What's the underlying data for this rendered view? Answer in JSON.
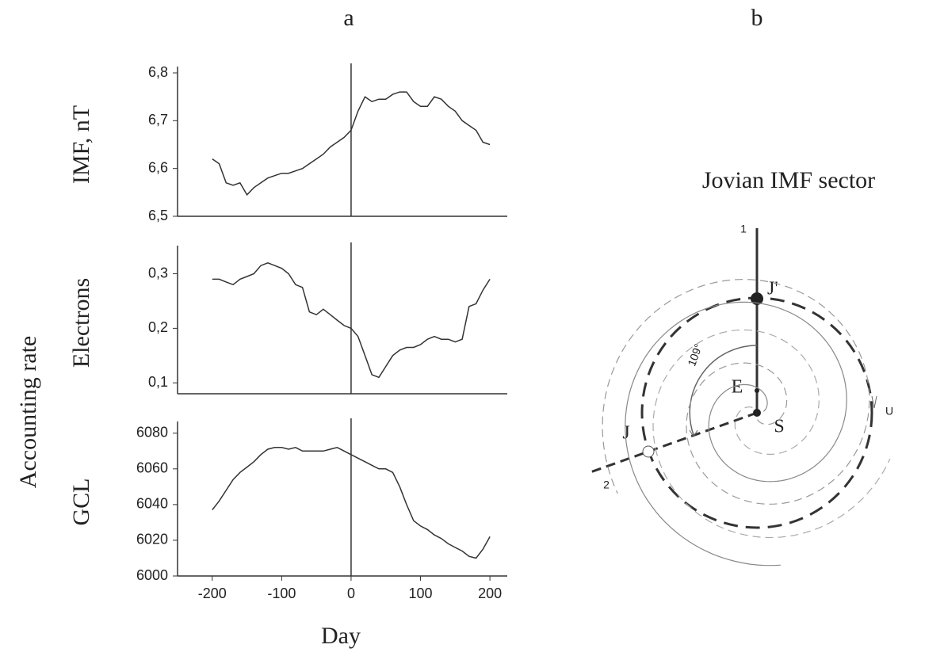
{
  "panel_labels": [
    "a",
    "b"
  ],
  "shared_y_label": "Accounting rate",
  "chart_data": [
    {
      "type": "line",
      "y_label": "IMF, nT",
      "color": "#333333",
      "reference_x": 0,
      "x": [
        -200,
        -190,
        -180,
        -170,
        -160,
        -150,
        -140,
        -130,
        -120,
        -110,
        -100,
        -90,
        -80,
        -70,
        -60,
        -50,
        -40,
        -30,
        -20,
        -10,
        0,
        10,
        20,
        30,
        40,
        50,
        60,
        70,
        80,
        90,
        100,
        110,
        120,
        130,
        140,
        150,
        160,
        170,
        180,
        190,
        200
      ],
      "values": [
        6.62,
        6.61,
        6.57,
        6.565,
        6.57,
        6.545,
        6.56,
        6.57,
        6.58,
        6.585,
        6.59,
        6.59,
        6.595,
        6.6,
        6.61,
        6.62,
        6.63,
        6.645,
        6.655,
        6.665,
        6.68,
        6.72,
        6.75,
        6.74,
        6.745,
        6.745,
        6.755,
        6.76,
        6.76,
        6.74,
        6.73,
        6.73,
        6.75,
        6.745,
        6.73,
        6.72,
        6.7,
        6.69,
        6.68,
        6.655,
        6.65
      ],
      "xlim": [
        -250,
        225
      ],
      "ylim": [
        6.5,
        6.8
      ],
      "yticks": [
        {
          "value": 6.5,
          "label": "6,5"
        },
        {
          "value": 6.6,
          "label": "6,6"
        },
        {
          "value": 6.7,
          "label": "6,7"
        },
        {
          "value": 6.8,
          "label": "6,8"
        }
      ]
    },
    {
      "type": "line",
      "y_label": "Electrons",
      "color": "#333333",
      "reference_x": 0,
      "x": [
        -200,
        -190,
        -180,
        -170,
        -160,
        -150,
        -140,
        -130,
        -120,
        -110,
        -100,
        -90,
        -80,
        -70,
        -60,
        -50,
        -40,
        -30,
        -20,
        -10,
        0,
        10,
        20,
        30,
        40,
        50,
        60,
        70,
        80,
        90,
        100,
        110,
        120,
        130,
        140,
        150,
        160,
        170,
        180,
        190,
        200
      ],
      "values": [
        0.29,
        0.29,
        0.285,
        0.28,
        0.29,
        0.295,
        0.3,
        0.315,
        0.32,
        0.315,
        0.31,
        0.3,
        0.28,
        0.275,
        0.23,
        0.225,
        0.235,
        0.225,
        0.215,
        0.205,
        0.2,
        0.185,
        0.15,
        0.115,
        0.11,
        0.13,
        0.15,
        0.16,
        0.165,
        0.165,
        0.17,
        0.18,
        0.185,
        0.18,
        0.18,
        0.175,
        0.18,
        0.24,
        0.245,
        0.27,
        0.29
      ],
      "xlim": [
        -250,
        225
      ],
      "ylim": [
        0.08,
        0.34
      ],
      "yticks": [
        {
          "value": 0.1,
          "label": "0,1"
        },
        {
          "value": 0.2,
          "label": "0,2"
        },
        {
          "value": 0.3,
          "label": "0,3"
        }
      ]
    },
    {
      "type": "line",
      "y_label": "GCL",
      "x_label": "Day",
      "color": "#333333",
      "reference_x": 0,
      "x": [
        -200,
        -190,
        -180,
        -170,
        -160,
        -150,
        -140,
        -130,
        -120,
        -110,
        -100,
        -90,
        -80,
        -70,
        -60,
        -50,
        -40,
        -30,
        -20,
        -10,
        0,
        10,
        20,
        30,
        40,
        50,
        60,
        70,
        80,
        90,
        100,
        110,
        120,
        130,
        140,
        150,
        160,
        170,
        180,
        190,
        200
      ],
      "values": [
        6037,
        6042,
        6048,
        6054,
        6058,
        6061,
        6064,
        6068,
        6071,
        6072,
        6072,
        6071,
        6072,
        6070,
        6070,
        6070,
        6070,
        6071,
        6072,
        6070,
        6068,
        6066,
        6064,
        6062,
        6060,
        6060,
        6058,
        6050,
        6040,
        6031,
        6028,
        6026,
        6023,
        6021,
        6018,
        6016,
        6014,
        6011,
        6010,
        6015,
        6022
      ],
      "xlim": [
        -250,
        225
      ],
      "ylim": [
        6000,
        6083
      ],
      "xticks": [
        -200,
        -100,
        0,
        100,
        200
      ],
      "yticks": [
        6000,
        6020,
        6040,
        6060,
        6080
      ]
    }
  ],
  "diagram": {
    "title": "Jovian IMF sector",
    "line_1": "1",
    "line_2": "2",
    "jupiter_prime": "J'",
    "jupiter": "J",
    "earth": "E",
    "sun": "S",
    "angle": "109°",
    "wind": "U"
  }
}
